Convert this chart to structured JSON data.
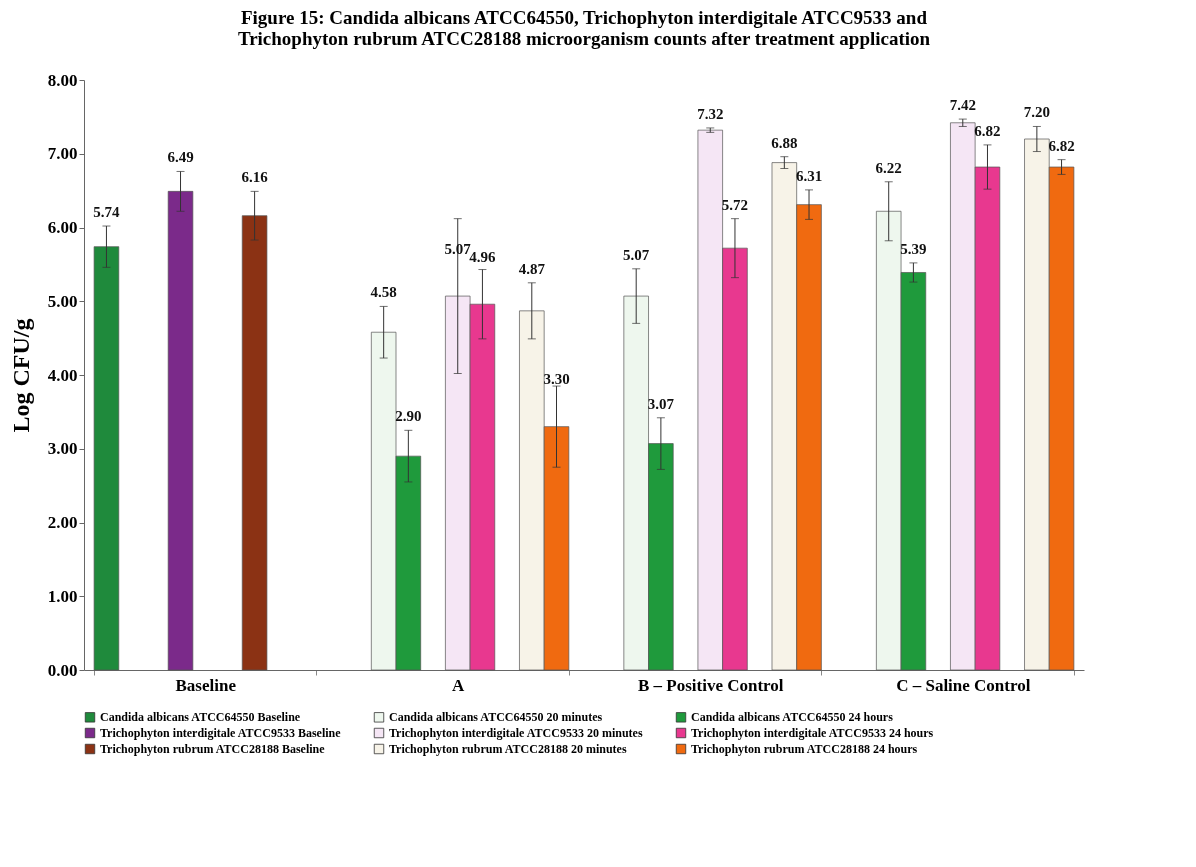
{
  "chart_data": {
    "type": "bar",
    "title": "Figure 15: Candida albicans ATCC64550, Trichophyton interdigitale ATCC9533 and Trichophyton rubrum ATCC28188 microorganism counts after treatment application",
    "ylabel": "Log CFU/g",
    "categories": [
      "Baseline",
      "A",
      "B – Positive Control",
      "C – Saline Control"
    ],
    "ylim": [
      0,
      8
    ],
    "yticks": [
      {
        "value": 0,
        "label": "0.00"
      },
      {
        "value": 1,
        "label": "1.00"
      },
      {
        "value": 2,
        "label": "2.00"
      },
      {
        "value": 3,
        "label": "3.00"
      },
      {
        "value": 4,
        "label": "4.00"
      },
      {
        "value": 5,
        "label": "5.00"
      },
      {
        "value": 6,
        "label": "6.00"
      },
      {
        "value": 7,
        "label": "7.00"
      },
      {
        "value": 8,
        "label": "8.00"
      }
    ],
    "grid": false,
    "legend": "bottom",
    "series": [
      {
        "name": "Candida albicans ATCC64550 Baseline",
        "color": "#1f8a3c",
        "values": [
          5.74,
          null,
          null,
          null
        ],
        "errors": [
          0.28,
          null,
          null,
          null
        ],
        "value_labels": [
          "5.74",
          null,
          null,
          null
        ]
      },
      {
        "name": "Candida albicans ATCC64550 20 minutes",
        "color": "#eef7ee",
        "values": [
          null,
          4.58,
          5.07,
          6.22
        ],
        "errors": [
          null,
          0.35,
          0.37,
          0.4
        ],
        "value_labels": [
          null,
          "4.58",
          "5.07",
          "6.22"
        ]
      },
      {
        "name": "Candida albicans ATCC64550 24 hours",
        "color": "#1f9a3c",
        "values": [
          null,
          2.9,
          3.07,
          5.39
        ],
        "errors": [
          null,
          0.35,
          0.35,
          0.13
        ],
        "value_labels": [
          null,
          "2.90",
          "3.07",
          "5.39"
        ]
      },
      {
        "name": "Trichophyton interdigitale ATCC9533 Baseline",
        "color": "#7b2a8a",
        "values": [
          6.49,
          null,
          null,
          null
        ],
        "errors": [
          0.27,
          null,
          null,
          null
        ],
        "value_labels": [
          "6.49",
          null,
          null,
          null
        ]
      },
      {
        "name": "Trichophyton interdigitale ATCC9533 20 minutes",
        "color": "#f5e6f5",
        "values": [
          null,
          5.07,
          7.32,
          7.42
        ],
        "errors": [
          null,
          1.05,
          0.03,
          0.05
        ],
        "value_labels": [
          null,
          "5.07",
          "7.32",
          "7.42"
        ]
      },
      {
        "name": "Trichophyton interdigitale ATCC9533 24 hours",
        "color": "#e8388f",
        "values": [
          null,
          4.96,
          5.72,
          6.82
        ],
        "errors": [
          null,
          0.47,
          0.4,
          0.3
        ],
        "value_labels": [
          null,
          "4.96",
          "5.72",
          "6.82"
        ]
      },
      {
        "name": "Trichophyton rubrum ATCC28188 Baseline",
        "color": "#8b3214",
        "values": [
          6.16,
          null,
          null,
          null
        ],
        "errors": [
          0.33,
          null,
          null,
          null
        ],
        "value_labels": [
          "6.16",
          null,
          null,
          null
        ]
      },
      {
        "name": "Trichophyton rubrum ATCC28188 20 minutes",
        "color": "#f7f3e8",
        "values": [
          null,
          4.87,
          6.88,
          7.2
        ],
        "errors": [
          null,
          0.38,
          0.08,
          0.17
        ],
        "value_labels": [
          null,
          "4.87",
          "6.88",
          "7.20"
        ]
      },
      {
        "name": "Trichophyton rubrum ATCC28188 24 hours",
        "color": "#f06a10",
        "values": [
          null,
          3.3,
          6.31,
          6.82
        ],
        "errors": [
          null,
          0.55,
          0.2,
          0.1
        ],
        "value_labels": [
          null,
          "3.30",
          "6.31",
          "6.82"
        ]
      }
    ]
  }
}
